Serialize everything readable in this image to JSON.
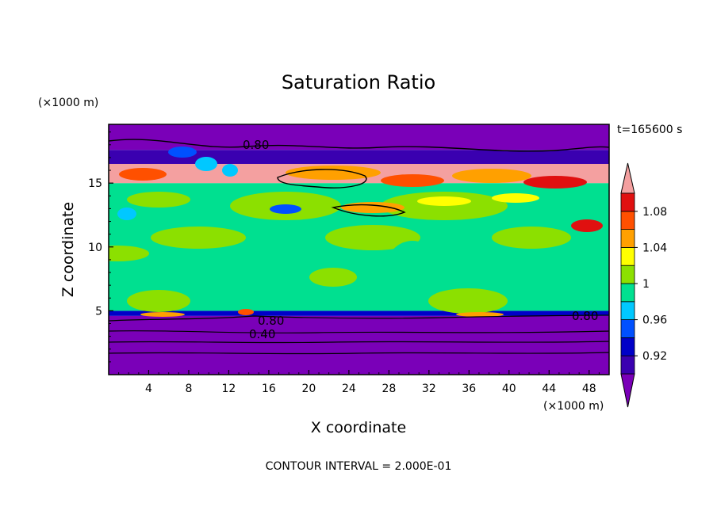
{
  "chart_data": {
    "type": "heatmap",
    "title": "Saturation Ratio",
    "xlabel": "X coordinate",
    "ylabel": "Z coordinate",
    "x_unit": "(×1000 m)",
    "y_unit": "(×1000 m)",
    "time_label": "t=165600 s",
    "footer": "CONTOUR INTERVAL = 2.000E-01",
    "xlim": [
      0,
      50
    ],
    "ylim": [
      0,
      19.6
    ],
    "x_ticks": [
      "4",
      "8",
      "12",
      "16",
      "20",
      "24",
      "28",
      "32",
      "36",
      "40",
      "44",
      "48"
    ],
    "y_ticks": [
      "5",
      "10",
      "15"
    ],
    "colorbar_labels": [
      "1.08",
      "1.04",
      "1",
      "0.96",
      "0.92"
    ],
    "colorbar_colors": [
      "#7a00b8",
      "#3a00b0",
      "#0000c8",
      "#0050ff",
      "#00c8ff",
      "#00e090",
      "#8ce000",
      "#ffff00",
      "#ffa000",
      "#ff5000",
      "#e01010",
      "#f4a0a0"
    ],
    "contour_labels": [
      "0.80",
      "0.80",
      "0.80",
      "0.40"
    ],
    "bands": [
      {
        "z0": 0,
        "z1": 4.6,
        "color": "#7a00b8"
      },
      {
        "z0": 4.6,
        "z1": 5.0,
        "color": "#0000c8"
      },
      {
        "z0": 5.0,
        "z1": 15.0,
        "color": "#00e090"
      },
      {
        "z0": 15.0,
        "z1": 16.5,
        "color": "#f4a0a0"
      },
      {
        "z0": 16.5,
        "z1": 17.6,
        "color": "#3a00b0"
      },
      {
        "z0": 17.6,
        "z1": 19.6,
        "color": "#7a00b8"
      }
    ]
  }
}
